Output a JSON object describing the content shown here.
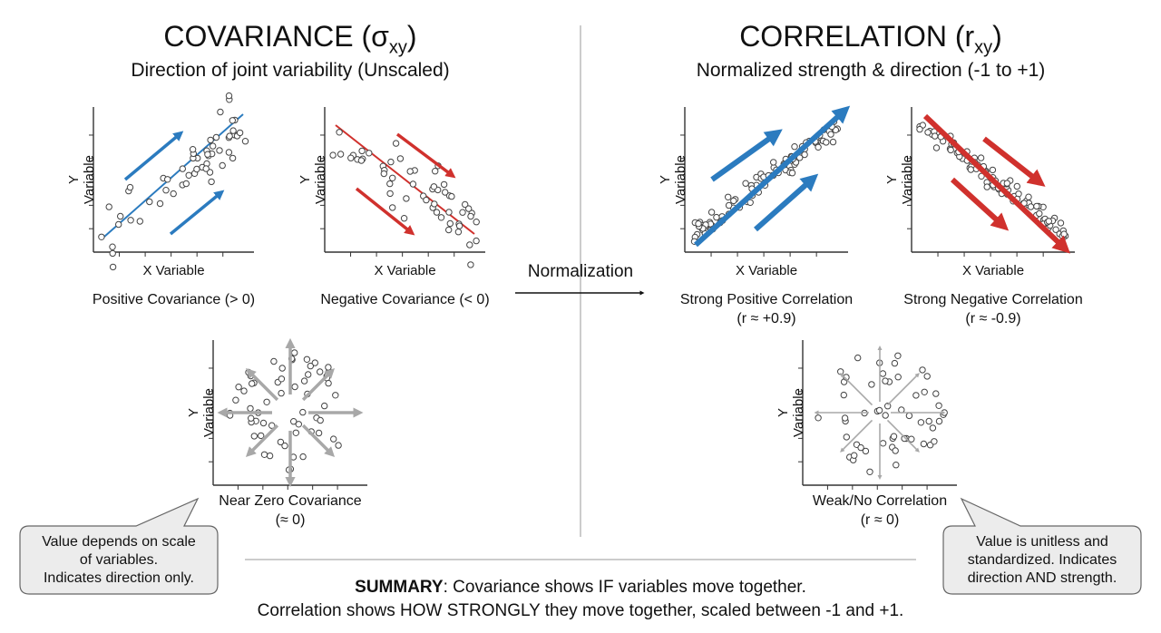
{
  "left": {
    "title": "COVARIANCE (σ",
    "title_sub": "xy",
    "title_end": ")",
    "subtitle": "Direction of joint variability (Unscaled)",
    "plots": [
      {
        "caption": "Positive Covariance (> 0)",
        "caption2": "",
        "ylabel": "Y Variable",
        "xlabel": "X Variable",
        "kind": "pos"
      },
      {
        "caption": "Negative Covariance (< 0)",
        "caption2": "",
        "ylabel": "Y Variable",
        "xlabel": "X Variable",
        "kind": "neg"
      },
      {
        "caption": "Near Zero Covariance",
        "caption2": "(≈ 0)",
        "ylabel": "Y Variable",
        "xlabel": "",
        "kind": "zero"
      }
    ],
    "callout": [
      "Value depends on scale",
      "of variables.",
      "Indicates direction only."
    ]
  },
  "right": {
    "title": "CORRELATION (r",
    "title_sub": "xy",
    "title_end": ")",
    "subtitle": "Normalized strength & direction (-1 to +1)",
    "plots": [
      {
        "caption": "Strong Positive Correlation",
        "caption2": "(r ≈ +0.9)",
        "ylabel": "Y Variable",
        "xlabel": "X Variable",
        "kind": "spos"
      },
      {
        "caption": "Strong Negative Correlation",
        "caption2": "(r ≈ -0.9)",
        "ylabel": "Y Variable",
        "xlabel": "X Variable",
        "kind": "sneg"
      },
      {
        "caption": "Weak/No Correlation",
        "caption2": "(r ≈ 0)",
        "ylabel": "Y Variable",
        "xlabel": "",
        "kind": "weak"
      }
    ],
    "callout": [
      "Value is unitless and",
      "standardized. Indicates",
      "direction AND strength."
    ]
  },
  "center": {
    "normalization_label": "Normalization"
  },
  "summary": {
    "bold": "SUMMARY",
    "line1": ": Covariance shows IF variables move together.",
    "line2": "Correlation shows HOW STRONGLY they move together, scaled between -1 and +1."
  },
  "colors": {
    "blue": "#2b7bbf",
    "red": "#d0312d",
    "gray": "#a8a8a8",
    "axis": "#333333"
  }
}
